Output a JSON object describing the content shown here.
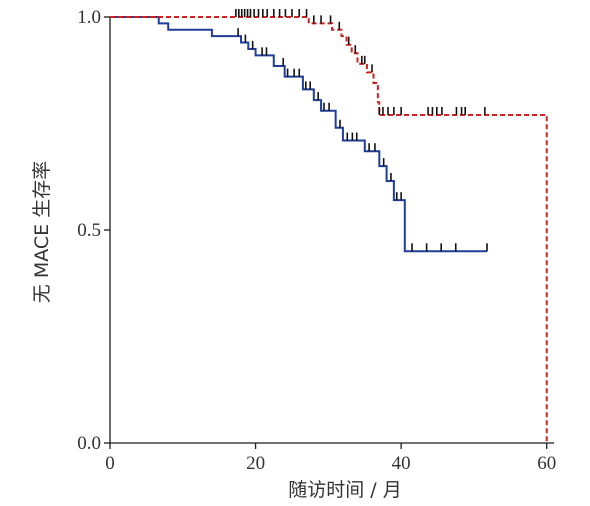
{
  "chart_data": {
    "type": "line",
    "subtype": "kaplan-meier step",
    "title": "",
    "xlabel": "随访时间 / 月",
    "ylabel": "无 MACE 生存率",
    "xlim": [
      0,
      61
    ],
    "ylim": [
      0,
      1.0
    ],
    "xticks": [
      0,
      20,
      40,
      60
    ],
    "xtick_labels": [
      "0",
      "20",
      "40",
      "60"
    ],
    "yticks": [
      0.0,
      0.5,
      1.0
    ],
    "ytick_labels": [
      "0.0",
      "0.5",
      "1.0"
    ],
    "grid": false,
    "legend": "none",
    "series": [
      {
        "color": "#1f3d99",
        "line_style": "solid",
        "steps": [
          [
            0,
            1.0
          ],
          [
            6.7,
            0.985
          ],
          [
            8,
            0.97
          ],
          [
            14,
            0.955
          ],
          [
            18,
            0.94
          ],
          [
            19,
            0.925
          ],
          [
            20,
            0.91
          ],
          [
            22.5,
            0.885
          ],
          [
            24,
            0.86
          ],
          [
            26.5,
            0.83
          ],
          [
            28,
            0.805
          ],
          [
            29,
            0.78
          ],
          [
            31,
            0.74
          ],
          [
            32,
            0.71
          ],
          [
            35,
            0.685
          ],
          [
            37,
            0.65
          ],
          [
            38,
            0.615
          ],
          [
            39,
            0.57
          ],
          [
            40.5,
            0.45
          ],
          [
            51.8,
            0.45
          ]
        ],
        "censor_times": [
          17.6,
          18.6,
          19.6,
          20.9,
          21.5,
          23.8,
          24.4,
          25.3,
          26.0,
          26.9,
          27.5,
          28.6,
          29.4,
          30.1,
          31.6,
          32.6,
          33.3,
          33.9,
          35.6,
          36.4,
          37.6,
          38.6,
          39.4,
          40.0,
          41.5,
          43.5,
          45.5,
          47.5,
          51.8
        ]
      },
      {
        "color": "#cc2222",
        "line_style": "dashed",
        "steps": [
          [
            0,
            1.0
          ],
          [
            27.3,
            0.985
          ],
          [
            30.5,
            0.97
          ],
          [
            31.8,
            0.955
          ],
          [
            32.5,
            0.935
          ],
          [
            33.2,
            0.915
          ],
          [
            34,
            0.89
          ],
          [
            35.3,
            0.87
          ],
          [
            36.2,
            0.845
          ],
          [
            36.8,
            0.8
          ],
          [
            37,
            0.77
          ],
          [
            60,
            0.77
          ],
          [
            60,
            0.0
          ]
        ],
        "censor_times": [
          17.3,
          17.7,
          18.1,
          18.5,
          18.9,
          19.3,
          19.8,
          20.4,
          21.0,
          21.6,
          22.5,
          23.3,
          24.1,
          25.0,
          26.0,
          27.0,
          28.0,
          29.0,
          30.3,
          31.5,
          32.8,
          33.7,
          34.6,
          35.0,
          36.0,
          37.0,
          37.5,
          38.2,
          39.0,
          40.0,
          43.7,
          44.3,
          44.9,
          45.6,
          47.6,
          48.3,
          48.8,
          51.5
        ]
      }
    ]
  }
}
